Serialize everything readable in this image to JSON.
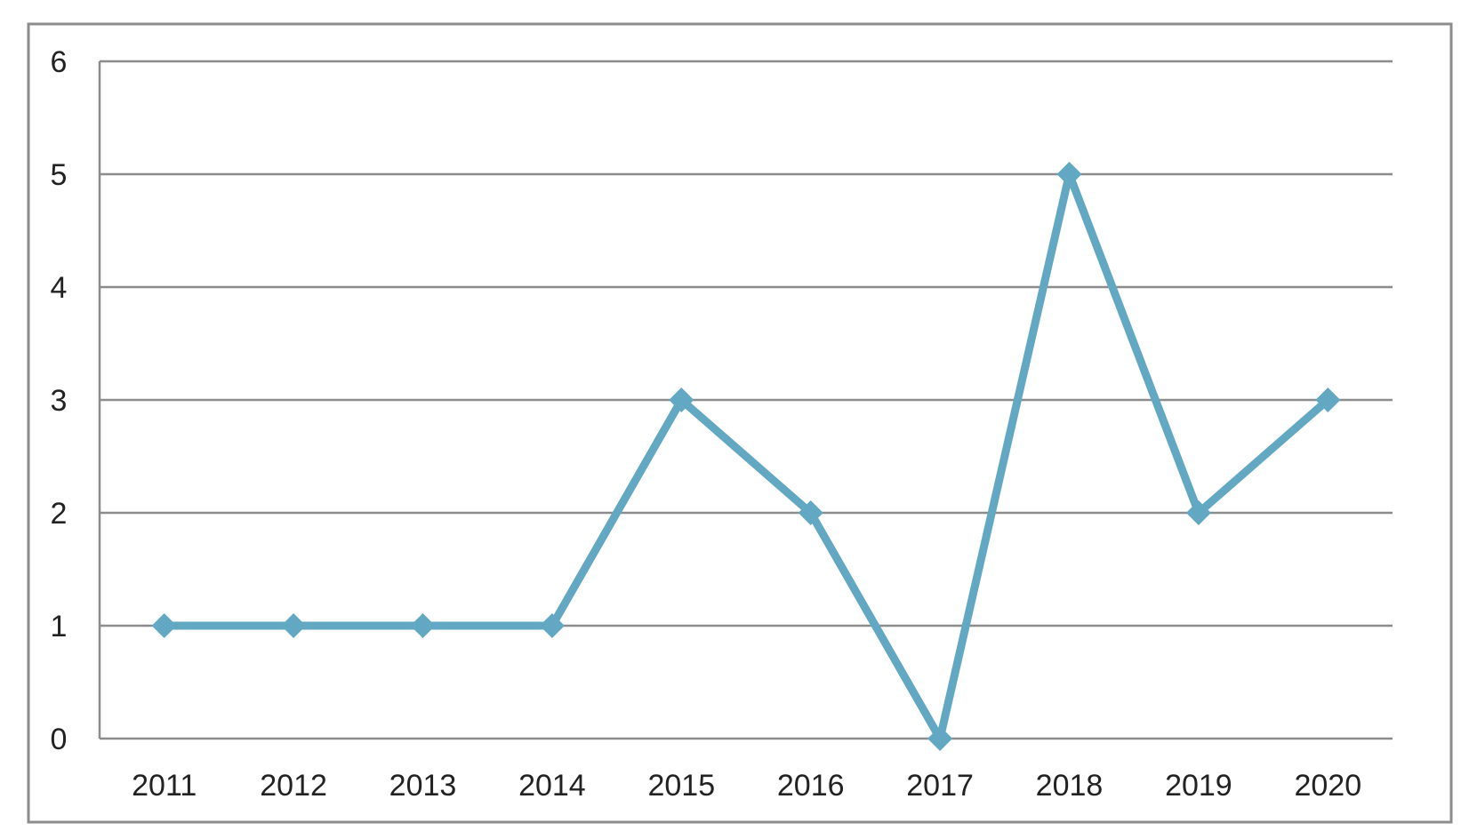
{
  "chart_data": {
    "type": "line",
    "title": "",
    "xlabel": "",
    "ylabel": "",
    "categories": [
      "2011",
      "2012",
      "2013",
      "2014",
      "2015",
      "2016",
      "2017",
      "2018",
      "2019",
      "2020"
    ],
    "series": [
      {
        "values": [
          1,
          1,
          1,
          1,
          3,
          2,
          0,
          5,
          2,
          3
        ]
      }
    ],
    "ylim": [
      0,
      6
    ],
    "yticks": [
      "0",
      "1",
      "2",
      "3",
      "4",
      "5",
      "6"
    ],
    "grid": true,
    "legend": "none",
    "marker": "diamond-marker",
    "colors": {
      "series": "#63a8c3",
      "grid": "#8c8c8c",
      "frame": "#8c8c8c",
      "text": "#222222"
    }
  }
}
